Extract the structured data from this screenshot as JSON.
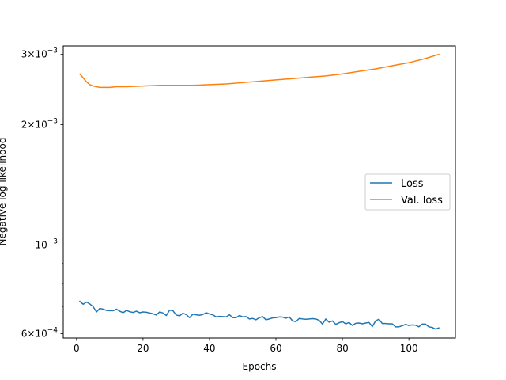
{
  "chart_data": {
    "type": "line",
    "xlabel": "Epochs",
    "ylabel": "Negative log likelihood",
    "yscale": "log",
    "xlim": [
      -4,
      114
    ],
    "ylim": [
      0.000585,
      0.00315
    ],
    "x_ticks": [
      {
        "value": 0,
        "label": "0"
      },
      {
        "value": 20,
        "label": "20"
      },
      {
        "value": 40,
        "label": "40"
      },
      {
        "value": 60,
        "label": "60"
      },
      {
        "value": 80,
        "label": "80"
      },
      {
        "value": 100,
        "label": "100"
      }
    ],
    "y_major_ticks": [
      {
        "value": 0.0006,
        "mantissa": "6",
        "cross": "×",
        "base": "10",
        "exp": "−4"
      },
      {
        "value": 0.001,
        "mantissa": "",
        "cross": "",
        "base": "10",
        "exp": "−3"
      },
      {
        "value": 0.002,
        "mantissa": "2",
        "cross": "×",
        "base": "10",
        "exp": "−3"
      },
      {
        "value": 0.003,
        "mantissa": "3",
        "cross": "×",
        "base": "10",
        "exp": "−3"
      }
    ],
    "y_minor_ticks": [
      0.0007,
      0.0008,
      0.0009
    ],
    "grid": false,
    "legend_position": "center-right",
    "series": [
      {
        "name": "Loss",
        "color": "#1f77b4",
        "x": [
          1,
          2,
          3,
          4,
          5,
          6,
          7,
          8,
          9,
          10,
          11,
          12,
          13,
          14,
          15,
          16,
          17,
          18,
          19,
          20,
          21,
          22,
          23,
          24,
          25,
          26,
          27,
          28,
          29,
          30,
          31,
          32,
          33,
          34,
          35,
          36,
          37,
          38,
          39,
          40,
          41,
          42,
          43,
          44,
          45,
          46,
          47,
          48,
          49,
          50,
          51,
          52,
          53,
          54,
          55,
          56,
          57,
          58,
          59,
          60,
          61,
          62,
          63,
          64,
          65,
          66,
          67,
          68,
          69,
          70,
          71,
          72,
          73,
          74,
          75,
          76,
          77,
          78,
          79,
          80,
          81,
          82,
          83,
          84,
          85,
          86,
          87,
          88,
          89,
          90,
          91,
          92,
          93,
          94,
          95,
          96,
          97,
          98,
          99,
          100,
          101,
          102,
          103,
          104,
          105,
          106,
          107,
          108,
          109
        ],
        "values": [
          0.000723,
          0.000711,
          0.00072,
          0.000712,
          0.000701,
          0.00068,
          0.000694,
          0.000691,
          0.000686,
          0.000685,
          0.000685,
          0.000691,
          0.000683,
          0.000677,
          0.000686,
          0.000681,
          0.000678,
          0.000683,
          0.000677,
          0.00068,
          0.000679,
          0.000676,
          0.000673,
          0.000668,
          0.00068,
          0.000676,
          0.000666,
          0.000687,
          0.000685,
          0.000668,
          0.000665,
          0.000675,
          0.00067,
          0.000658,
          0.000671,
          0.000669,
          0.000667,
          0.00067,
          0.000677,
          0.000672,
          0.000669,
          0.000661,
          0.000663,
          0.000662,
          0.000661,
          0.000669,
          0.000658,
          0.000658,
          0.000666,
          0.000661,
          0.000662,
          0.000653,
          0.000655,
          0.00065,
          0.000658,
          0.000662,
          0.00065,
          0.000653,
          0.000657,
          0.000658,
          0.000661,
          0.00066,
          0.000656,
          0.000661,
          0.000646,
          0.000643,
          0.000655,
          0.000653,
          0.000652,
          0.000653,
          0.000654,
          0.000653,
          0.000648,
          0.000634,
          0.000653,
          0.000641,
          0.000646,
          0.000633,
          0.000639,
          0.000643,
          0.000635,
          0.00064,
          0.000629,
          0.000637,
          0.000638,
          0.000635,
          0.000638,
          0.00064,
          0.000625,
          0.000646,
          0.000652,
          0.000636,
          0.000636,
          0.000635,
          0.000635,
          0.000624,
          0.000624,
          0.000628,
          0.000633,
          0.000629,
          0.000631,
          0.00063,
          0.000624,
          0.000634,
          0.000634,
          0.000624,
          0.000622,
          0.000616,
          0.00062
        ]
      },
      {
        "name": "Val. loss",
        "color": "#ff7f0e",
        "x": [
          1,
          2,
          3,
          4,
          5,
          6,
          7,
          8,
          10,
          12,
          15,
          20,
          25,
          30,
          35,
          40,
          45,
          50,
          55,
          60,
          65,
          70,
          75,
          80,
          85,
          90,
          95,
          100,
          105,
          109
        ],
        "values": [
          0.00268,
          0.00262,
          0.00256,
          0.00252,
          0.0025,
          0.00249,
          0.00248,
          0.00248,
          0.00248,
          0.00249,
          0.00249,
          0.0025,
          0.00251,
          0.00251,
          0.00251,
          0.00252,
          0.00253,
          0.00255,
          0.00257,
          0.00259,
          0.00261,
          0.00263,
          0.00265,
          0.00268,
          0.00272,
          0.00276,
          0.00281,
          0.00286,
          0.00293,
          0.003
        ]
      }
    ]
  }
}
